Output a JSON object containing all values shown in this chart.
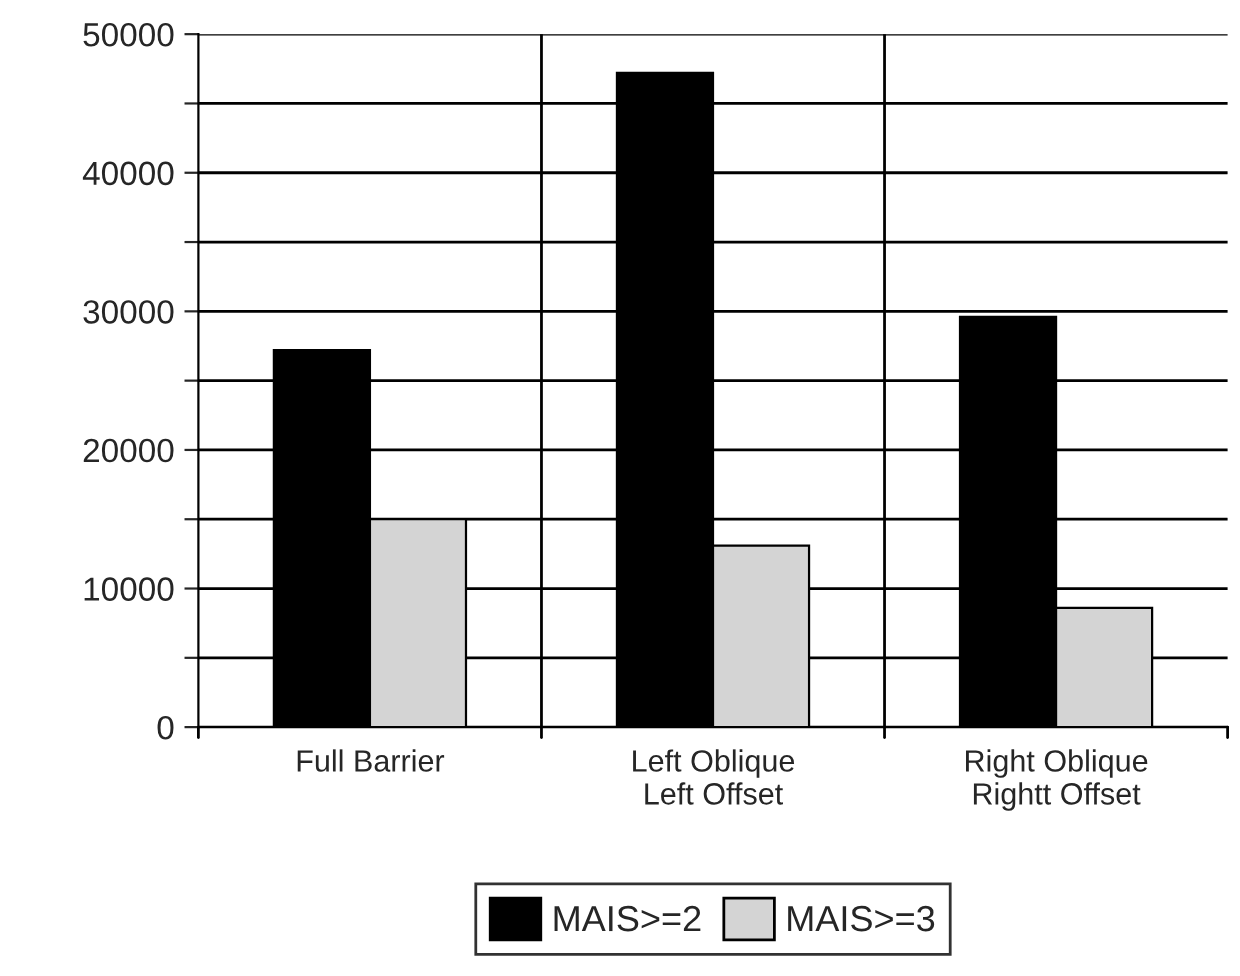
{
  "chart_data": {
    "type": "bar",
    "categories": [
      "Full Barrier",
      "Left Oblique\nLeft Offset",
      "Right Oblique\nRightt Offset"
    ],
    "series": [
      {
        "name": "MAIS>=2",
        "color": "#000000",
        "values": [
          27200,
          47200,
          29600
        ]
      },
      {
        "name": "MAIS>=3",
        "color": "#d4d4d4",
        "values": [
          15000,
          13100,
          8600
        ]
      }
    ],
    "ylim": [
      0,
      50000
    ],
    "yticks": [
      0,
      {
        "value": 5000,
        "label": null
      },
      10000,
      {
        "value": 15000,
        "label": null
      },
      20000,
      {
        "value": 25000,
        "label": null
      },
      30000,
      {
        "value": 35000,
        "label": null
      },
      40000,
      {
        "value": 45000,
        "label": null
      },
      50000
    ],
    "grid": true,
    "legend": "bottom"
  }
}
